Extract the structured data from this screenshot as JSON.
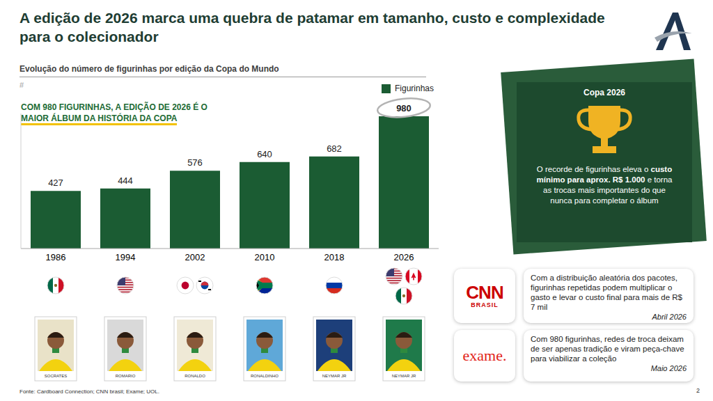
{
  "header": {
    "title": "A edição de 2026 marca uma quebra de patamar em tamanho, custo e complexidade para o colecionador",
    "page": "2"
  },
  "chart_data": {
    "type": "bar",
    "title": "Evolução do número de figurinhas por edição da Copa do Mundo",
    "y_label": "#",
    "annotation": [
      "COM 980 FIGURINHAS, A EDIÇÃO DE 2026 É O",
      "MAIOR ÁLBUM DA HISTÓRIA DA COPA"
    ],
    "categories": [
      "1986",
      "1994",
      "2002",
      "2010",
      "2018",
      "2026"
    ],
    "series": [
      {
        "name": "Figurinhas",
        "color": "#1b5c33",
        "values": [
          427,
          444,
          576,
          640,
          682,
          980
        ]
      }
    ],
    "ylim": [
      0,
      1000
    ],
    "yticks": [],
    "tick_labels": "x",
    "data_labels": true,
    "legend": "top-right",
    "grid": false
  },
  "stickers": [
    "SOCRATES",
    "ROMARIO",
    "RONALDO",
    "RONALDINHO",
    "NEYMAR JR",
    "NEYMAR JR"
  ],
  "panel": {
    "title": "Copa 2026",
    "text": [
      {
        "text": "O recorde de figurinhas eleva o ",
        "bold": false
      },
      {
        "text": "custo mínimo para aprox. R$ 1.000",
        "bold": true
      },
      {
        "text": " e torna as trocas mais importantes do que nunca para completar o álbum",
        "bold": false
      }
    ]
  },
  "quotes": [
    {
      "logo": [
        "CNN",
        "BRASIL"
      ],
      "text": "Com a distribuição aleatória dos pacotes, figurinhas repetidas podem multiplicar o gasto e levar o custo final para mais de R$ 7 mil",
      "date": "Abril 2026"
    },
    {
      "logo": [
        "exame."
      ],
      "text": "Com 980 figurinhas, redes de troca deixam de ser apenas tradição e viram peça-chave para viabilizar a coleção",
      "date": "Maio 2026"
    }
  ],
  "footer": "Fonte: Cardboard Connection; CNN brasil; Exame; UOL."
}
